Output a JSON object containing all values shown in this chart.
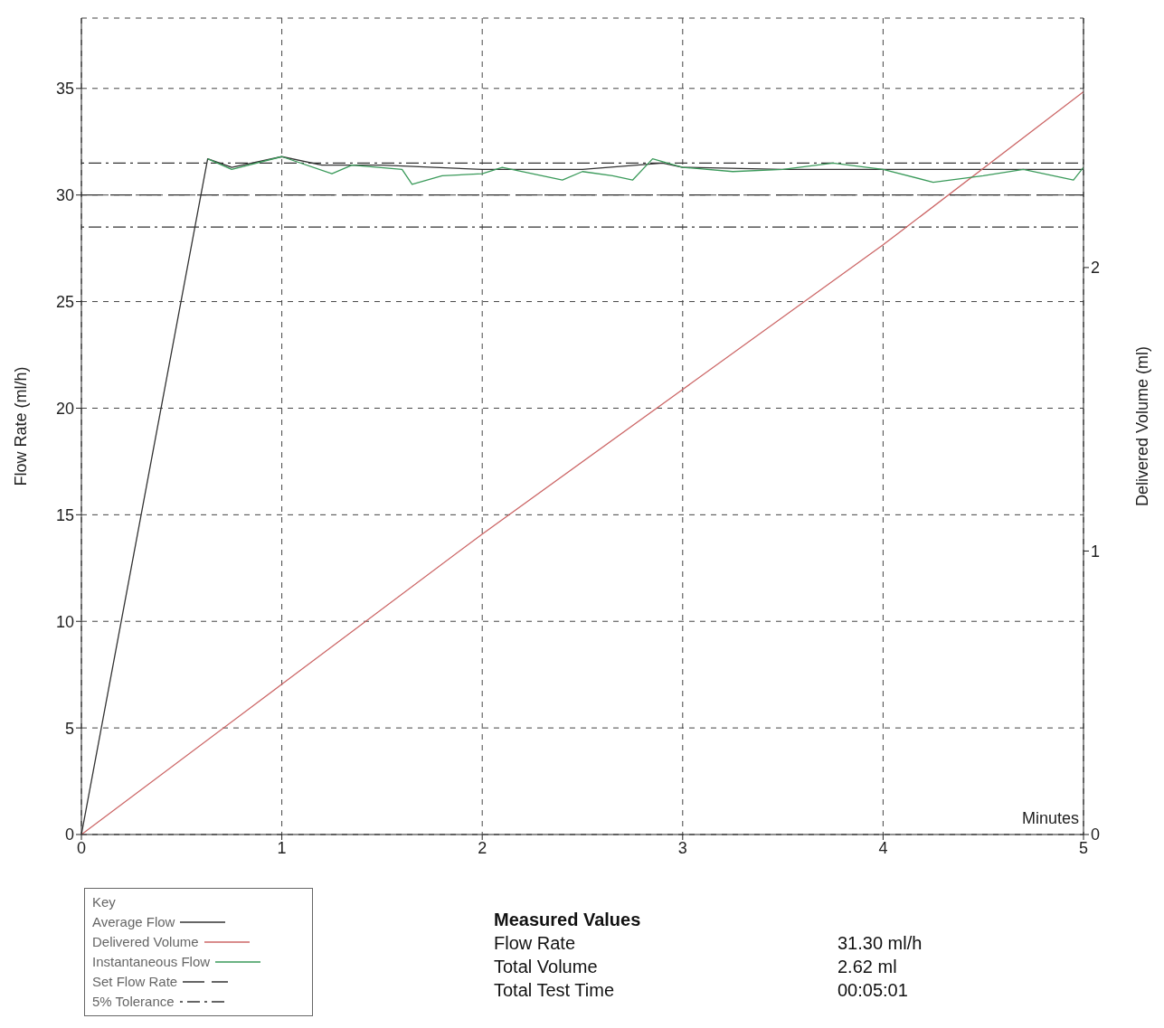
{
  "chart_data": {
    "type": "line",
    "xlabel": "Minutes",
    "ylabel": "Flow Rate (ml/h)",
    "y2label": "Delivered Volume (ml)",
    "legend_title": "Key",
    "xlim": [
      0,
      5
    ],
    "xticks": [
      0,
      1,
      2,
      3,
      4,
      5
    ],
    "ylim": [
      0,
      38.3
    ],
    "yticks": [
      0,
      5,
      10,
      15,
      20,
      25,
      30,
      35
    ],
    "y2lim": [
      0,
      2.88
    ],
    "y2ticks": [
      0,
      1,
      2
    ],
    "grid": true,
    "legend": "bottom left",
    "marker": "none",
    "line_style": "solid",
    "series": [
      {
        "name": "Average Flow",
        "color": "#333333",
        "x": [
          0,
          0.63,
          0.75,
          1.0,
          1.2,
          1.5,
          2.0,
          2.5,
          2.9,
          3.0,
          3.5,
          4.0,
          4.5,
          5.0
        ],
        "values": [
          0,
          31.7,
          31.3,
          31.8,
          31.4,
          31.4,
          31.2,
          31.2,
          31.5,
          31.3,
          31.2,
          31.2,
          31.2,
          31.2
        ]
      },
      {
        "name": "Delivered Volume",
        "color": "#cc6666",
        "axis": "y2",
        "x": [
          0,
          1,
          2,
          3,
          4,
          5
        ],
        "values": [
          0,
          0.53,
          1.06,
          1.57,
          2.08,
          2.62
        ]
      },
      {
        "name": "Instantaneous Flow",
        "color": "#3a9a5a",
        "x": [
          0.63,
          0.75,
          1.0,
          1.25,
          1.35,
          1.6,
          1.65,
          1.8,
          2.0,
          2.1,
          2.4,
          2.5,
          2.65,
          2.75,
          2.85,
          3.0,
          3.25,
          3.5,
          3.75,
          4.0,
          4.25,
          4.5,
          4.7,
          4.95,
          5.0
        ],
        "values": [
          31.7,
          31.2,
          31.8,
          31.0,
          31.4,
          31.2,
          30.5,
          30.9,
          31.0,
          31.3,
          30.7,
          31.1,
          30.9,
          30.7,
          31.7,
          31.3,
          31.1,
          31.2,
          31.5,
          31.2,
          30.6,
          30.9,
          31.2,
          30.7,
          31.3
        ]
      }
    ],
    "ref_lines": [
      {
        "axis": "y",
        "value": 30,
        "label": "Set Flow Rate",
        "line_style": "dashed",
        "color": "#333333"
      },
      {
        "axis": "y",
        "value": 31.5,
        "label": "5% Tolerance",
        "line_style": "dotted",
        "color": "#333333"
      },
      {
        "axis": "y",
        "value": 28.5,
        "line_style": "dotted",
        "color": "#333333"
      }
    ],
    "annotations": [
      "Measured Values",
      "Flow Rate",
      "31.30 ml/h",
      "Total Volume",
      "2.62 ml",
      "Total Test Time",
      "00:05:01"
    ]
  }
}
